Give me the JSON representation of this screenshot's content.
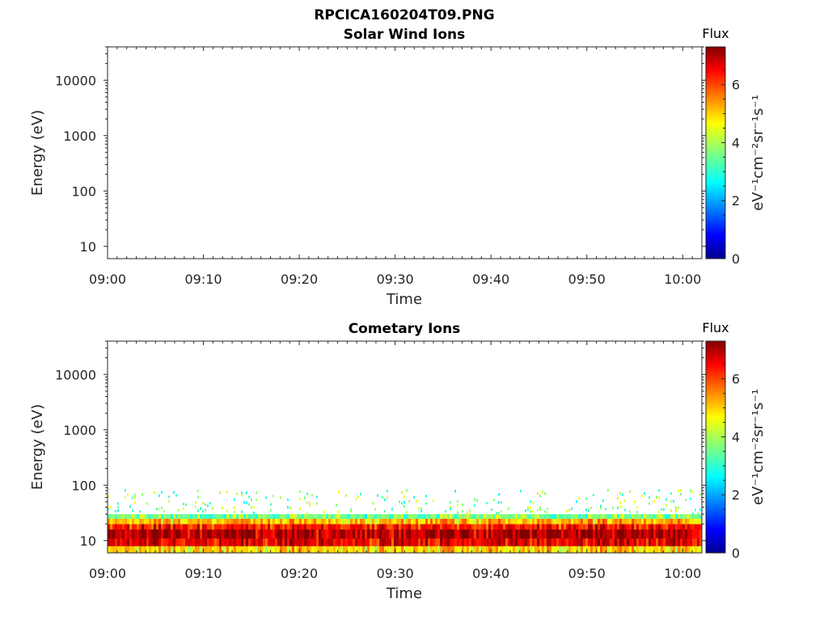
{
  "figure": {
    "title": "RPCICA160204T09.PNG"
  },
  "chart_data": [
    {
      "type": "heatmap",
      "title": "Solar Wind Ions",
      "xlabel": "Time",
      "ylabel": "Energy (eV)",
      "x_ticks": [
        "09:00",
        "09:10",
        "09:20",
        "09:30",
        "09:40",
        "09:50",
        "10:00"
      ],
      "xlim": [
        "09:00",
        "10:02"
      ],
      "y_scale": "log",
      "y_ticks": [
        "10",
        "100",
        "1000",
        "10000"
      ],
      "ylim": [
        6,
        40000
      ],
      "colorbar": {
        "title": "Flux",
        "label": "eV⁻¹cm⁻²sr⁻¹s⁻¹",
        "ticks": [
          "0",
          "2",
          "4",
          "6"
        ],
        "range": [
          0,
          7.3
        ],
        "colormap": "jet"
      },
      "bands": []
    },
    {
      "type": "heatmap",
      "title": "Cometary Ions",
      "xlabel": "Time",
      "ylabel": "Energy (eV)",
      "x_ticks": [
        "09:00",
        "09:10",
        "09:20",
        "09:30",
        "09:40",
        "09:50",
        "10:00"
      ],
      "xlim": [
        "09:00",
        "10:02"
      ],
      "y_scale": "log",
      "y_ticks": [
        "10",
        "100",
        "1000",
        "10000"
      ],
      "ylim": [
        6,
        40000
      ],
      "colorbar": {
        "title": "Flux",
        "label": "eV⁻¹cm⁻²sr⁻¹s⁻¹",
        "ticks": [
          "0",
          "2",
          "4",
          "6"
        ],
        "range": [
          0,
          7.3
        ],
        "colormap": "jet"
      },
      "bands": [
        {
          "energy_min": 6,
          "energy_max": 8,
          "flux": 4.8
        },
        {
          "energy_min": 8,
          "energy_max": 11,
          "flux": 6.5
        },
        {
          "energy_min": 11,
          "energy_max": 16,
          "flux": 6.9
        },
        {
          "energy_min": 16,
          "energy_max": 20,
          "flux": 6.2
        },
        {
          "energy_min": 20,
          "energy_max": 25,
          "flux": 5.0
        },
        {
          "energy_min": 25,
          "energy_max": 30,
          "flux": 3.6
        }
      ],
      "sparse_flux_up_to_energy": 80
    }
  ]
}
